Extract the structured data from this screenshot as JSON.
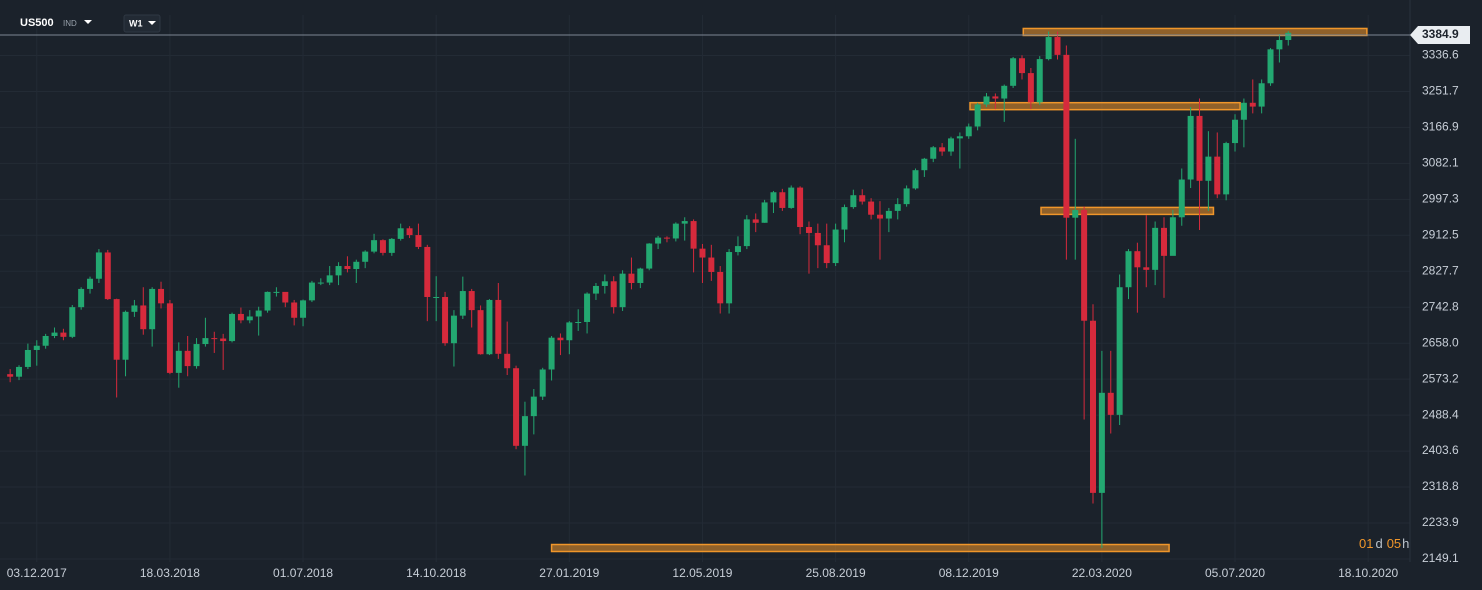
{
  "header": {
    "symbol": "US500",
    "market": "IND",
    "timeframe": "W1"
  },
  "chart_data": {
    "type": "candlestick",
    "x": [
      "2017-11-12",
      "2017-11-19",
      "2017-11-26",
      "2017-12-03",
      "2017-12-10",
      "2017-12-17",
      "2017-12-24",
      "2017-12-31",
      "2018-01-07",
      "2018-01-14",
      "2018-01-21",
      "2018-01-28",
      "2018-02-04",
      "2018-02-11",
      "2018-02-18",
      "2018-02-25",
      "2018-03-04",
      "2018-03-11",
      "2018-03-18",
      "2018-03-25",
      "2018-04-01",
      "2018-04-08",
      "2018-04-15",
      "2018-04-22",
      "2018-04-29",
      "2018-05-06",
      "2018-05-13",
      "2018-05-20",
      "2018-05-27",
      "2018-06-03",
      "2018-06-10",
      "2018-06-17",
      "2018-06-24",
      "2018-07-01",
      "2018-07-08",
      "2018-07-15",
      "2018-07-22",
      "2018-07-29",
      "2018-08-05",
      "2018-08-12",
      "2018-08-19",
      "2018-08-26",
      "2018-09-02",
      "2018-09-09",
      "2018-09-16",
      "2018-09-23",
      "2018-09-30",
      "2018-10-07",
      "2018-10-14",
      "2018-10-21",
      "2018-10-28",
      "2018-11-04",
      "2018-11-11",
      "2018-11-18",
      "2018-11-25",
      "2018-12-02",
      "2018-12-09",
      "2018-12-16",
      "2018-12-23",
      "2018-12-30",
      "2019-01-06",
      "2019-01-13",
      "2019-01-20",
      "2019-01-27",
      "2019-02-03",
      "2019-02-10",
      "2019-02-17",
      "2019-02-24",
      "2019-03-03",
      "2019-03-10",
      "2019-03-17",
      "2019-03-24",
      "2019-03-31",
      "2019-04-07",
      "2019-04-14",
      "2019-04-21",
      "2019-04-28",
      "2019-05-05",
      "2019-05-12",
      "2019-05-19",
      "2019-05-26",
      "2019-06-02",
      "2019-06-09",
      "2019-06-16",
      "2019-06-23",
      "2019-06-30",
      "2019-07-07",
      "2019-07-14",
      "2019-07-21",
      "2019-07-28",
      "2019-08-04",
      "2019-08-11",
      "2019-08-18",
      "2019-08-25",
      "2019-09-01",
      "2019-09-08",
      "2019-09-15",
      "2019-09-22",
      "2019-09-29",
      "2019-10-06",
      "2019-10-13",
      "2019-10-20",
      "2019-10-27",
      "2019-11-03",
      "2019-11-10",
      "2019-11-17",
      "2019-11-24",
      "2019-12-01",
      "2019-12-08",
      "2019-12-15",
      "2019-12-22",
      "2019-12-29",
      "2020-01-05",
      "2020-01-12",
      "2020-01-19",
      "2020-01-26",
      "2020-02-02",
      "2020-02-09",
      "2020-02-16",
      "2020-02-23",
      "2020-03-01",
      "2020-03-08",
      "2020-03-15",
      "2020-03-22",
      "2020-03-29",
      "2020-04-05",
      "2020-04-12",
      "2020-04-19",
      "2020-04-26",
      "2020-05-03",
      "2020-05-10",
      "2020-05-17",
      "2020-05-24",
      "2020-05-31",
      "2020-06-07",
      "2020-06-14",
      "2020-06-21",
      "2020-06-28",
      "2020-07-05",
      "2020-07-12",
      "2020-07-19",
      "2020-07-26",
      "2020-08-02",
      "2020-08-09",
      "2020-08-16"
    ],
    "open": [
      2585,
      2579,
      2602,
      2642,
      2652,
      2675,
      2683,
      2673,
      2743,
      2786,
      2810,
      2872,
      2762,
      2619,
      2732,
      2747,
      2691,
      2786,
      2752,
      2588,
      2640,
      2604,
      2656,
      2670,
      2669,
      2663,
      2727,
      2712,
      2721,
      2735,
      2779,
      2779,
      2754,
      2718,
      2759,
      2801,
      2801,
      2818,
      2840,
      2833,
      2850,
      2874,
      2901,
      2871,
      2904,
      2929,
      2913,
      2885,
      2767,
      2767,
      2658,
      2723,
      2781,
      2736,
      2632,
      2760,
      2633,
      2599,
      2416,
      2486,
      2532,
      2596,
      2671,
      2665,
      2707,
      2708,
      2775,
      2793,
      2804,
      2743,
      2822,
      2800,
      2834,
      2893,
      2907,
      2905,
      2940,
      2946,
      2881,
      2860,
      2826,
      2752,
      2873,
      2887,
      2950,
      2942,
      2990,
      3014,
      2977,
      3025,
      2932,
      2918,
      2889,
      2847,
      2926,
      2979,
      3007,
      2992,
      2961,
      2952,
      2970,
      2986,
      3023,
      3066,
      3093,
      3120,
      3110,
      3141,
      3146,
      3169,
      3221,
      3240,
      3235,
      3265,
      3330,
      3295,
      3226,
      3328,
      3380,
      3338,
      2954,
      2972,
      2711,
      2305,
      2541,
      2489,
      2790,
      2875,
      2837,
      2831,
      2930,
      2864,
      2955,
      3044,
      3194,
      3041,
      3098,
      3009,
      3130,
      3185,
      3225,
      3216,
      3271,
      3351,
      3373
    ],
    "high": [
      2597,
      2606,
      2657,
      2665,
      2680,
      2695,
      2692,
      2748,
      2790,
      2815,
      2880,
      2878,
      2763,
      2735,
      2760,
      2790,
      2790,
      2803,
      2760,
      2660,
      2675,
      2670,
      2718,
      2685,
      2680,
      2730,
      2742,
      2736,
      2744,
      2780,
      2790,
      2775,
      2760,
      2761,
      2805,
      2811,
      2840,
      2849,
      2863,
      2855,
      2877,
      2916,
      2903,
      2906,
      2940,
      2934,
      2940,
      2890,
      2816,
      2779,
      2736,
      2815,
      2786,
      2747,
      2762,
      2800,
      2709,
      2605,
      2520,
      2550,
      2600,
      2675,
      2681,
      2710,
      2738,
      2778,
      2800,
      2820,
      2816,
      2830,
      2860,
      2836,
      2894,
      2911,
      2910,
      2943,
      2955,
      2950,
      2892,
      2890,
      2840,
      2880,
      2910,
      2960,
      2964,
      2996,
      3017,
      3022,
      3030,
      3028,
      2945,
      2940,
      2940,
      2940,
      2985,
      3020,
      3021,
      3000,
      2993,
      2977,
      3000,
      3030,
      3070,
      3095,
      3123,
      3130,
      3145,
      3155,
      3176,
      3225,
      3248,
      3247,
      3268,
      3333,
      3337,
      3307,
      3335,
      3393,
      3393,
      3360,
      3140,
      2980,
      2750,
      2640,
      2640,
      2820,
      2880,
      2895,
      2960,
      2945,
      2955,
      2972,
      3070,
      3215,
      3235,
      3158,
      3155,
      3133,
      3198,
      3235,
      3280,
      3280,
      3354,
      3387,
      3394
    ],
    "low": [
      2566,
      2571,
      2597,
      2605,
      2645,
      2670,
      2665,
      2670,
      2737,
      2775,
      2800,
      2760,
      2530,
      2580,
      2720,
      2678,
      2650,
      2740,
      2585,
      2553,
      2580,
      2598,
      2650,
      2635,
      2595,
      2660,
      2705,
      2705,
      2676,
      2730,
      2768,
      2743,
      2700,
      2698,
      2755,
      2795,
      2795,
      2795,
      2825,
      2800,
      2835,
      2870,
      2865,
      2864,
      2900,
      2906,
      2880,
      2710,
      2710,
      2652,
      2603,
      2715,
      2695,
      2631,
      2630,
      2621,
      2583,
      2408,
      2346,
      2443,
      2524,
      2570,
      2630,
      2632,
      2687,
      2681,
      2760,
      2775,
      2728,
      2734,
      2785,
      2788,
      2830,
      2880,
      2896,
      2898,
      2900,
      2825,
      2800,
      2805,
      2728,
      2728,
      2865,
      2880,
      2920,
      2942,
      2965,
      2970,
      2975,
      2915,
      2822,
      2835,
      2835,
      2840,
      2896,
      2975,
      2985,
      2950,
      2855,
      2920,
      2950,
      2980,
      3020,
      3050,
      3085,
      3100,
      3100,
      3070,
      3140,
      3160,
      3215,
      3210,
      3180,
      3260,
      3280,
      3210,
      3220,
      3325,
      3327,
      2855,
      2855,
      2478,
      2280,
      2175,
      2445,
      2465,
      2762,
      2730,
      2790,
      2795,
      2765,
      2870,
      2935,
      3024,
      2925,
      2970,
      3000,
      2995,
      3110,
      3120,
      3200,
      3200,
      3265,
      3320,
      3360
    ],
    "close": [
      2579,
      2602,
      2642,
      2652,
      2675,
      2683,
      2673,
      2743,
      2786,
      2810,
      2872,
      2762,
      2619,
      2732,
      2747,
      2691,
      2786,
      2752,
      2588,
      2640,
      2604,
      2656,
      2670,
      2669,
      2663,
      2727,
      2712,
      2721,
      2735,
      2779,
      2779,
      2754,
      2718,
      2759,
      2801,
      2801,
      2818,
      2840,
      2833,
      2850,
      2874,
      2901,
      2871,
      2904,
      2929,
      2913,
      2885,
      2767,
      2767,
      2658,
      2723,
      2781,
      2736,
      2632,
      2760,
      2633,
      2599,
      2416,
      2486,
      2532,
      2596,
      2671,
      2665,
      2707,
      2708,
      2775,
      2793,
      2804,
      2743,
      2822,
      2800,
      2834,
      2893,
      2907,
      2905,
      2940,
      2946,
      2881,
      2860,
      2826,
      2752,
      2873,
      2887,
      2950,
      2942,
      2990,
      3014,
      2977,
      3025,
      2932,
      2918,
      2889,
      2847,
      2926,
      2979,
      3007,
      2992,
      2961,
      2952,
      2970,
      2986,
      3023,
      3066,
      3093,
      3120,
      3110,
      3141,
      3146,
      3169,
      3221,
      3240,
      3235,
      3265,
      3330,
      3295,
      3226,
      3328,
      3380,
      3338,
      2954,
      2972,
      2711,
      2305,
      2541,
      2489,
      2790,
      2875,
      2837,
      2831,
      2930,
      2864,
      2955,
      3044,
      3194,
      3041,
      3098,
      3009,
      3130,
      3185,
      3225,
      3216,
      3271,
      3351,
      3373,
      3390
    ],
    "up_color": "#23a871",
    "down_color": "#d62a3c",
    "xlim": [
      "2017-11-04",
      "2020-11-20"
    ],
    "xticks": [
      {
        "value": "2017-12-03",
        "label": "03.12.2017"
      },
      {
        "value": "2018-03-18",
        "label": "18.03.2018"
      },
      {
        "value": "2018-07-01",
        "label": "01.07.2018"
      },
      {
        "value": "2018-10-14",
        "label": "14.10.2018"
      },
      {
        "value": "2019-01-27",
        "label": "27.01.2019"
      },
      {
        "value": "2019-05-12",
        "label": "12.05.2019"
      },
      {
        "value": "2019-08-25",
        "label": "25.08.2019"
      },
      {
        "value": "2019-12-08",
        "label": "08.12.2019"
      },
      {
        "value": "2020-03-22",
        "label": "22.03.2020"
      },
      {
        "value": "2020-07-05",
        "label": "05.07.2020"
      },
      {
        "value": "2020-10-18",
        "label": "18.10.2020"
      }
    ],
    "ylim": [
      2142,
      3432
    ],
    "yticks": [
      2149.1,
      2233.9,
      2318.8,
      2403.6,
      2488.4,
      2573.2,
      {
        "value": 2658,
        "label": "2658.0"
      },
      2742.8,
      2827.7,
      2912.5,
      2997.3,
      3082.1,
      3166.9,
      3251.7,
      3336.6
    ],
    "grid": true,
    "last_price": 3384.9,
    "zones": [
      {
        "y": 3392,
        "start": "2020-01-20",
        "end": "2020-10-17"
      },
      {
        "y": 3217,
        "start": "2019-12-09",
        "end": "2020-07-09"
      },
      {
        "y": 2970,
        "start": "2020-02-03",
        "end": "2020-06-18"
      },
      {
        "y": 2175,
        "start": "2019-01-13",
        "end": "2020-05-14"
      }
    ],
    "zone_color": "#f0962a"
  },
  "countdown": [
    "01",
    "d",
    "05",
    "h"
  ]
}
